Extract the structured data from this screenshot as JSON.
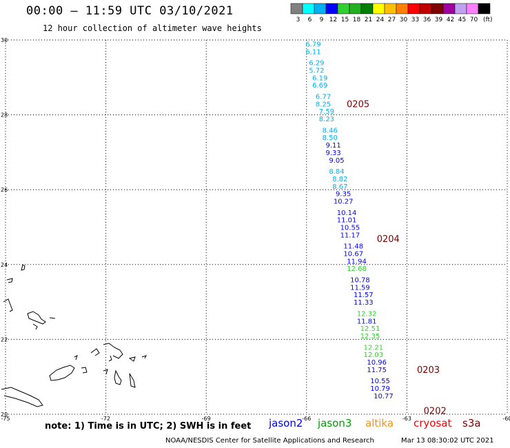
{
  "title": "00:00 – 11:59 UTC 03/10/2021",
  "subtitle": "12 hour collection of altimeter wave heights",
  "note": "note: 1) Time is in UTC; 2) SWH is in feet",
  "credit": "NOAA/NESDIS Center for Satellite Applications and Research",
  "timestamp": "Mar 13 08:30:02 UTC 2021",
  "color_scale": {
    "unit": "(ft)",
    "bins": [
      {
        "label": "3",
        "color": "#808080"
      },
      {
        "label": "6",
        "color": "#00ffff"
      },
      {
        "label": "9",
        "color": "#00b0f0"
      },
      {
        "label": "12",
        "color": "#0000ff"
      },
      {
        "label": "15",
        "color": "#30d030"
      },
      {
        "label": "18",
        "color": "#20b020"
      },
      {
        "label": "21",
        "color": "#008000"
      },
      {
        "label": "24",
        "color": "#ffff00"
      },
      {
        "label": "27",
        "color": "#ffc000"
      },
      {
        "label": "30",
        "color": "#ff8000"
      },
      {
        "label": "33",
        "color": "#ff0000"
      },
      {
        "label": "36",
        "color": "#c00000"
      },
      {
        "label": "39",
        "color": "#800000"
      },
      {
        "label": "42",
        "color": "#a000a0"
      },
      {
        "label": "45",
        "color": "#c0a0f0"
      },
      {
        "label": "70",
        "color": "#ff80ff"
      },
      {
        "label": "",
        "color": "#000000"
      }
    ]
  },
  "satellites": [
    {
      "name": "jason2",
      "color": "#0000ff"
    },
    {
      "name": "jason3",
      "color": "#00a000"
    },
    {
      "name": "altika",
      "color": "#ff9000"
    },
    {
      "name": "cryosat",
      "color": "#ff0000"
    },
    {
      "name": "s3a",
      "color": "#800000"
    }
  ],
  "axes": {
    "lon_ticks": [
      "-75",
      "-72",
      "-69",
      "-66",
      "-63",
      "-60"
    ],
    "lat_ticks": [
      "30",
      "28",
      "26",
      "24",
      "22",
      "20"
    ],
    "lon_range": [
      -75,
      -60
    ],
    "lat_range": [
      20,
      30
    ]
  },
  "chart_data": {
    "type": "scatter",
    "x_label": "",
    "y_label": "",
    "points": [
      {
        "lon": -65.8,
        "lat": 29.9,
        "value": "6.79",
        "color": "#00b0f0"
      },
      {
        "lon": -65.8,
        "lat": 29.7,
        "value": "6.11",
        "color": "#00b0f0"
      },
      {
        "lon": -65.7,
        "lat": 29.4,
        "value": "6.29",
        "color": "#00b0f0"
      },
      {
        "lon": -65.7,
        "lat": 29.2,
        "value": "5.72",
        "color": "#00b0f0"
      },
      {
        "lon": -65.6,
        "lat": 29.0,
        "value": "6.19",
        "color": "#00b0f0"
      },
      {
        "lon": -65.6,
        "lat": 28.8,
        "value": "6.69",
        "color": "#00b0f0"
      },
      {
        "lon": -65.5,
        "lat": 28.5,
        "value": "6.77",
        "color": "#00b0f0"
      },
      {
        "lon": -65.5,
        "lat": 28.3,
        "value": "8.25",
        "color": "#00b0f0"
      },
      {
        "lon": -65.4,
        "lat": 28.1,
        "value": "7.59",
        "color": "#00b0f0"
      },
      {
        "lon": -65.4,
        "lat": 27.9,
        "value": "8.23",
        "color": "#00b0f0"
      },
      {
        "lon": -65.3,
        "lat": 27.6,
        "value": "8.46",
        "color": "#00b0f0"
      },
      {
        "lon": -65.3,
        "lat": 27.4,
        "value": "8.50",
        "color": "#00b0f0"
      },
      {
        "lon": -65.2,
        "lat": 27.2,
        "value": "9.11",
        "color": "#0000ff"
      },
      {
        "lon": -65.2,
        "lat": 27.0,
        "value": "9.33",
        "color": "#0000ff"
      },
      {
        "lon": -65.1,
        "lat": 26.8,
        "value": "9.05",
        "color": "#0000ff"
      },
      {
        "lon": -65.1,
        "lat": 26.5,
        "value": "8.84",
        "color": "#00b0f0"
      },
      {
        "lon": -65.0,
        "lat": 26.3,
        "value": "8.82",
        "color": "#00b0f0"
      },
      {
        "lon": -65.0,
        "lat": 26.1,
        "value": "8.67",
        "color": "#00b0f0"
      },
      {
        "lon": -64.9,
        "lat": 25.9,
        "value": "9.35",
        "color": "#0000ff"
      },
      {
        "lon": -64.9,
        "lat": 25.7,
        "value": "10.27",
        "color": "#0000ff"
      },
      {
        "lon": -64.8,
        "lat": 25.4,
        "value": "10.14",
        "color": "#0000ff"
      },
      {
        "lon": -64.8,
        "lat": 25.2,
        "value": "11.01",
        "color": "#0000ff"
      },
      {
        "lon": -64.7,
        "lat": 25.0,
        "value": "10.55",
        "color": "#0000ff"
      },
      {
        "lon": -64.7,
        "lat": 24.8,
        "value": "11.17",
        "color": "#0000ff"
      },
      {
        "lon": -64.6,
        "lat": 24.5,
        "value": "11.48",
        "color": "#0000ff"
      },
      {
        "lon": -64.6,
        "lat": 24.3,
        "value": "10.67",
        "color": "#0000ff"
      },
      {
        "lon": -64.5,
        "lat": 24.1,
        "value": "11.94",
        "color": "#0000ff"
      },
      {
        "lon": -64.5,
        "lat": 23.9,
        "value": "12.68",
        "color": "#30d030"
      },
      {
        "lon": -64.4,
        "lat": 23.6,
        "value": "10.78",
        "color": "#0000ff"
      },
      {
        "lon": -64.4,
        "lat": 23.4,
        "value": "11.59",
        "color": "#0000ff"
      },
      {
        "lon": -64.3,
        "lat": 23.2,
        "value": "11.57",
        "color": "#0000ff"
      },
      {
        "lon": -64.3,
        "lat": 23.0,
        "value": "11.33",
        "color": "#0000ff"
      },
      {
        "lon": -64.2,
        "lat": 22.7,
        "value": "12.32",
        "color": "#30d030"
      },
      {
        "lon": -64.2,
        "lat": 22.5,
        "value": "11.81",
        "color": "#0000ff"
      },
      {
        "lon": -64.1,
        "lat": 22.3,
        "value": "12.51",
        "color": "#30d030"
      },
      {
        "lon": -64.1,
        "lat": 22.1,
        "value": "12.35",
        "color": "#30d030"
      },
      {
        "lon": -64.0,
        "lat": 21.8,
        "value": "12.21",
        "color": "#30d030"
      },
      {
        "lon": -64.0,
        "lat": 21.6,
        "value": "12.03",
        "color": "#30d030"
      },
      {
        "lon": -63.9,
        "lat": 21.4,
        "value": "10.96",
        "color": "#0000ff"
      },
      {
        "lon": -63.9,
        "lat": 21.2,
        "value": "11.75",
        "color": "#0000ff"
      },
      {
        "lon": -63.8,
        "lat": 20.9,
        "value": "10.55",
        "color": "#0000ff"
      },
      {
        "lon": -63.8,
        "lat": 20.7,
        "value": "10.79",
        "color": "#0000ff"
      },
      {
        "lon": -63.7,
        "lat": 20.5,
        "value": "10.77",
        "color": "#0000ff"
      }
    ],
    "time_labels": [
      {
        "lon": -64.8,
        "lat": 28.3,
        "text": "0205",
        "color": "#800000"
      },
      {
        "lon": -63.9,
        "lat": 24.7,
        "text": "0204",
        "color": "#800000"
      },
      {
        "lon": -62.7,
        "lat": 21.2,
        "text": "0203",
        "color": "#800000"
      },
      {
        "lon": -62.5,
        "lat": 20.1,
        "text": "0202",
        "color": "#800000"
      }
    ]
  }
}
